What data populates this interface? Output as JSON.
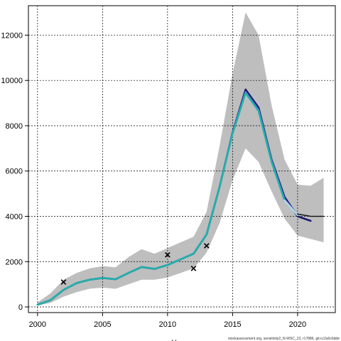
{
  "chart_data": {
    "type": "line",
    "title": "",
    "xlabel": "Y",
    "ylabel": "",
    "xlim": [
      1999.3,
      2022.9
    ],
    "ylim": [
      -250,
      13300
    ],
    "x_ticks": [
      2000,
      2005,
      2010,
      2015,
      2020
    ],
    "y_ticks": [
      0,
      2000,
      4000,
      6000,
      8000,
      10000,
      12000
    ],
    "x_tick_labels": [
      "2000",
      "2005",
      "2010",
      "2015",
      "2020"
    ],
    "y_tick_labels": [
      "0",
      "2000",
      "4000",
      "6000",
      "8000",
      "10000",
      "12000"
    ],
    "grid": true,
    "legend": "none",
    "footer": "stockassessment.org, sensitivity2_N-WSC_23, r17886, git:cc2a0c6dde",
    "confidence_band": {
      "color": "#bebebe",
      "x": [
        2000,
        2001,
        2002,
        2003,
        2004,
        2005,
        2006,
        2007,
        2008,
        2009,
        2010,
        2011,
        2012,
        2013,
        2014,
        2015,
        2016,
        2017,
        2018,
        2019,
        2020,
        2021,
        2022
      ],
      "lower": [
        60,
        180,
        450,
        650,
        800,
        850,
        800,
        1000,
        1200,
        1200,
        1300,
        1500,
        1700,
        2400,
        3700,
        5600,
        7000,
        6400,
        5100,
        3900,
        3150,
        3000,
        2850
      ],
      "upper": [
        200,
        600,
        1200,
        1500,
        1700,
        1800,
        1750,
        2200,
        2550,
        2350,
        2600,
        2850,
        3100,
        4200,
        7100,
        10300,
        13000,
        12000,
        8900,
        6500,
        5400,
        5350,
        5700
      ]
    },
    "series": [
      {
        "color": "#191970",
        "x": [
          2000,
          2001,
          2002,
          2003,
          2004,
          2005,
          2006,
          2007,
          2008,
          2009,
          2010,
          2011,
          2012,
          2013,
          2014,
          2015,
          2016,
          2017,
          2018,
          2019,
          2020,
          2021
        ],
        "values": [
          100,
          300,
          750,
          1050,
          1200,
          1280,
          1220,
          1500,
          1760,
          1680,
          1850,
          2100,
          2350,
          3200,
          5300,
          7700,
          9600,
          8800,
          6500,
          4850,
          4000,
          3800
        ]
      },
      {
        "color": "#5050c8",
        "x": [
          2000,
          2001,
          2002,
          2003,
          2004,
          2005,
          2006,
          2007,
          2008,
          2009,
          2010,
          2011,
          2012,
          2013,
          2014,
          2015,
          2016,
          2017,
          2018,
          2019,
          2020
        ],
        "values": [
          100,
          300,
          750,
          1050,
          1200,
          1280,
          1220,
          1500,
          1760,
          1680,
          1850,
          2100,
          2350,
          3200,
          5300,
          7700,
          9500,
          8700,
          6450,
          4750,
          4050
        ]
      },
      {
        "color": "#20b2aa",
        "x": [
          2000,
          2001,
          2002,
          2003,
          2004,
          2005,
          2006,
          2007,
          2008,
          2009,
          2010,
          2011,
          2012,
          2013,
          2014,
          2015,
          2016,
          2017,
          2018,
          2019
        ],
        "values": [
          100,
          300,
          750,
          1050,
          1200,
          1280,
          1220,
          1500,
          1760,
          1680,
          1850,
          2100,
          2350,
          3200,
          5300,
          7650,
          9450,
          8650,
          6400,
          4700
        ]
      },
      {
        "color": "#add8e6",
        "x": [
          2019,
          2020
        ],
        "values": [
          4700,
          4050
        ]
      },
      {
        "color": "#111111",
        "dashed": true,
        "x": [
          2020,
          2021,
          2022
        ],
        "values": [
          4100,
          4000,
          4000
        ]
      }
    ],
    "points": [
      {
        "x": 2002,
        "y": 1100
      },
      {
        "x": 2010,
        "y": 2300
      },
      {
        "x": 2012,
        "y": 1700
      },
      {
        "x": 2013,
        "y": 2700
      }
    ]
  }
}
